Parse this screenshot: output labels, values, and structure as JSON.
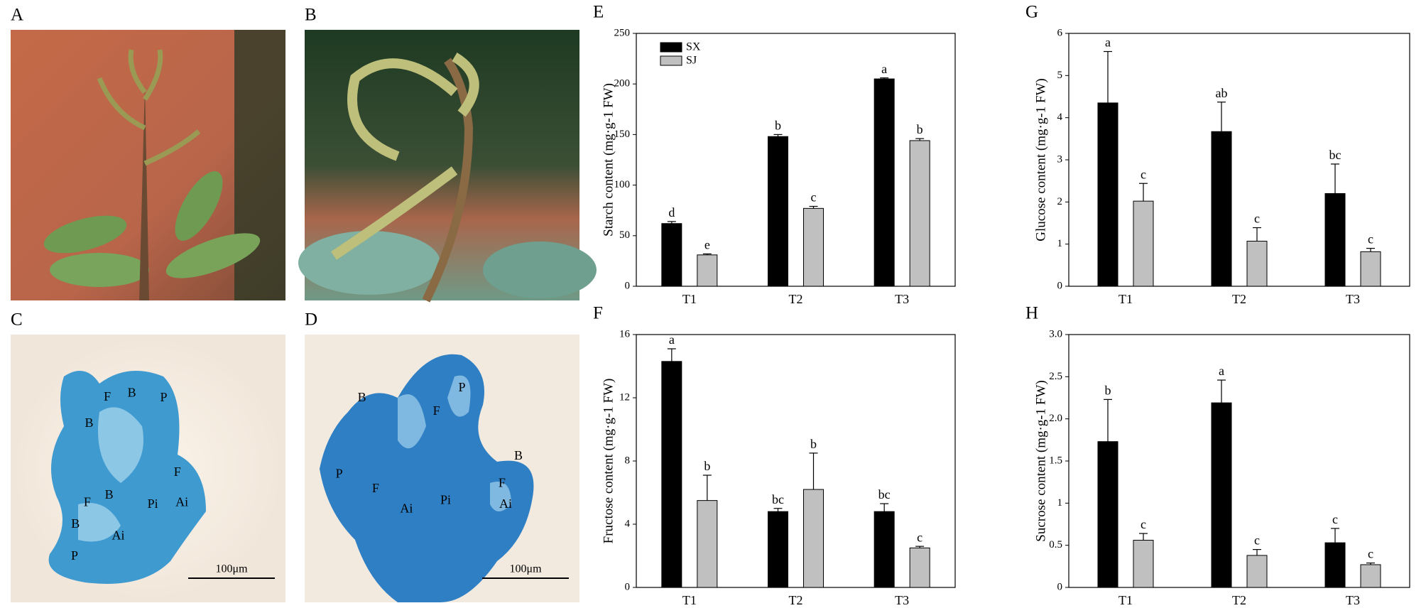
{
  "photos": [
    {
      "panel": "A"
    },
    {
      "panel": "B"
    },
    {
      "panel": "C",
      "scale_bar": "100μm",
      "labels": [
        "F",
        "B",
        "P",
        "B",
        "F",
        "Ai",
        "Pi",
        "F",
        "B",
        "B",
        "Ai",
        "P"
      ]
    },
    {
      "panel": "D",
      "scale_bar": "100μm",
      "labels": [
        "B",
        "P",
        "F",
        "P",
        "F",
        "Ai",
        "Pi",
        "F",
        "B",
        "Ai"
      ]
    }
  ],
  "chart_data": [
    {
      "type": "bar",
      "panel": "E",
      "ylabel": "Starch content (mg·g-1 FW)",
      "categories": [
        "T1",
        "T2",
        "T3"
      ],
      "series": [
        {
          "name": "SX",
          "color": "#000000",
          "values": [
            62,
            148,
            205
          ],
          "errors": [
            2,
            2,
            1
          ],
          "letters": [
            "d",
            "b",
            "a"
          ]
        },
        {
          "name": "SJ",
          "color": "#c0c0c0",
          "values": [
            31,
            77,
            144
          ],
          "errors": [
            1,
            2,
            2
          ],
          "letters": [
            "e",
            "c",
            "b"
          ]
        }
      ],
      "ylim": [
        0,
        250
      ],
      "yticks": [
        0,
        50,
        100,
        150,
        200,
        250
      ],
      "legend": "upper left"
    },
    {
      "type": "bar",
      "panel": "F",
      "ylabel": "Fructose content (mg·g-1 FW)",
      "categories": [
        "T1",
        "T2",
        "T3"
      ],
      "series": [
        {
          "color": "#000000",
          "values": [
            14.3,
            4.8,
            4.8
          ],
          "errors": [
            0.8,
            0.2,
            0.5
          ],
          "letters": [
            "a",
            "bc",
            "bc"
          ]
        },
        {
          "color": "#c0c0c0",
          "values": [
            5.5,
            6.2,
            2.5
          ],
          "errors": [
            1.6,
            2.3,
            0.1
          ],
          "letters": [
            "b",
            "b",
            "c"
          ]
        }
      ],
      "ylim": [
        0,
        16
      ],
      "yticks": [
        0,
        4,
        8,
        12,
        16
      ]
    },
    {
      "type": "bar",
      "panel": "G",
      "ylabel": "Glucose content (mg·g-1 FW)",
      "categories": [
        "T1",
        "T2",
        "T3"
      ],
      "series": [
        {
          "color": "#000000",
          "values": [
            4.35,
            3.67,
            2.2
          ],
          "errors": [
            1.22,
            0.7,
            0.7
          ],
          "letters": [
            "a",
            "ab",
            "bc"
          ]
        },
        {
          "color": "#c0c0c0",
          "values": [
            2.02,
            1.07,
            0.82
          ],
          "errors": [
            0.42,
            0.32,
            0.08
          ],
          "letters": [
            "c",
            "c",
            "c"
          ]
        }
      ],
      "ylim": [
        0,
        6
      ],
      "yticks": [
        0,
        1,
        2,
        3,
        4,
        5,
        6
      ]
    },
    {
      "type": "bar",
      "panel": "H",
      "ylabel": "Sucrose content (mg·g-1 FW)",
      "categories": [
        "T1",
        "T2",
        "T3"
      ],
      "series": [
        {
          "color": "#000000",
          "values": [
            1.73,
            2.19,
            0.53
          ],
          "errors": [
            0.5,
            0.27,
            0.17
          ],
          "letters": [
            "b",
            "a",
            "c"
          ]
        },
        {
          "color": "#c0c0c0",
          "values": [
            0.56,
            0.38,
            0.27
          ],
          "errors": [
            0.08,
            0.07,
            0.02
          ],
          "letters": [
            "c",
            "c",
            "c"
          ]
        }
      ],
      "ylim": [
        0,
        3
      ],
      "yticks": [
        0,
        0.5,
        1,
        1.5,
        {
          "value": 2,
          "label": "2.0"
        },
        2.5,
        {
          "value": 3,
          "label": "3.0"
        }
      ]
    }
  ]
}
